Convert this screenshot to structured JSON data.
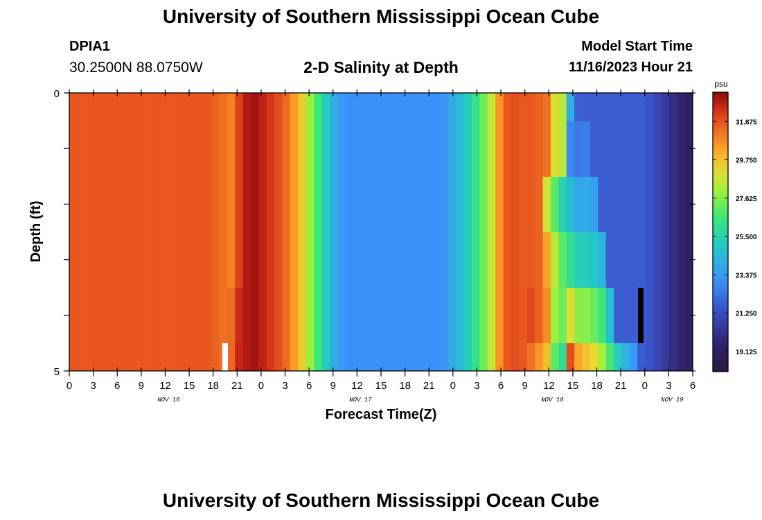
{
  "header": {
    "title": "University of Southern Mississippi Ocean Cube",
    "footer_title": "University of Southern Mississippi Ocean Cube",
    "station_id": "DPIA1",
    "station_coords": "30.2500N  88.0750W",
    "plot_title": "2-D Salinity at Depth",
    "model_start_label": "Model Start Time",
    "model_start_value": "11/16/2023 Hour 21"
  },
  "chart_data": {
    "type": "heatmap",
    "title": "2-D Salinity at Depth",
    "xlabel": "Forecast Time(Z)",
    "ylabel": "Depth (ft)",
    "x_tick_labels": [
      "0",
      "3",
      "6",
      "9",
      "12",
      "15",
      "18",
      "21",
      "0",
      "3",
      "6",
      "9",
      "12",
      "15",
      "18",
      "21",
      "0",
      "3",
      "6",
      "9",
      "12",
      "15",
      "18",
      "21",
      "0",
      "3",
      "6"
    ],
    "day_labels": [
      {
        "label": "NOV 16",
        "tick_index": 4
      },
      {
        "label": "NOV 17",
        "tick_index": 12
      },
      {
        "label": "NOV 18",
        "tick_index": 20
      },
      {
        "label": "NOV 19",
        "tick_index": 25
      }
    ],
    "y_tick_labels": [
      "0",
      "5"
    ],
    "ylim": [
      0,
      5
    ],
    "colorbar": {
      "unit": "psu",
      "min": 18.0,
      "max": 33.5,
      "tick_values": [
        19.125,
        21.25,
        23.375,
        25.5,
        27.625,
        29.75,
        31.875
      ],
      "tick_labels": [
        "19.125",
        "21.250",
        "23.375",
        "25.500",
        "27.625",
        "29.750",
        "31.875"
      ]
    },
    "time_hours": [
      0,
      1,
      2,
      3,
      4,
      5,
      6,
      7,
      8,
      9,
      10,
      11,
      12,
      13,
      14,
      15,
      16,
      17,
      18,
      19,
      20,
      21,
      22,
      23,
      24,
      25,
      26,
      27,
      28,
      29,
      30,
      31,
      32,
      33,
      34,
      35,
      36,
      37,
      38,
      39,
      40,
      41,
      42,
      43,
      44,
      45,
      46,
      47,
      48,
      49,
      50,
      51,
      52,
      53,
      54,
      55,
      56,
      57,
      58,
      59,
      60,
      61,
      62,
      63,
      64,
      65,
      66,
      67,
      68,
      69,
      70,
      71,
      72,
      73,
      74,
      75,
      76,
      77,
      78
    ],
    "depth_layers_ft": [
      "0-1",
      "1-2",
      "2-3",
      "3-4",
      "4-4.5",
      "4.5-5"
    ],
    "salinity_surface_psu": [
      31.8,
      31.8,
      31.8,
      31.8,
      31.8,
      31.8,
      31.8,
      31.8,
      31.8,
      31.8,
      31.8,
      31.8,
      31.8,
      31.8,
      31.8,
      31.8,
      31.8,
      31.8,
      31.6,
      31.3,
      31.0,
      32.2,
      33.0,
      33.2,
      32.8,
      32.4,
      32.0,
      31.4,
      30.5,
      29.5,
      28.0,
      26.5,
      25.2,
      24.0,
      23.3,
      23.0,
      23.0,
      23.0,
      23.0,
      23.0,
      23.0,
      23.0,
      23.0,
      23.0,
      23.0,
      23.0,
      23.0,
      23.2,
      23.8,
      24.5,
      25.3,
      26.2,
      27.3,
      28.6,
      30.6,
      31.8,
      32.0,
      31.8,
      31.8,
      31.6,
      31.3,
      29.0,
      28.5,
      24.0,
      21.8,
      21.7,
      21.7,
      21.7,
      21.7,
      21.7,
      21.7,
      21.7,
      21.7,
      21.5,
      21.0,
      20.5,
      20.0,
      19.5,
      19.0
    ]
  }
}
